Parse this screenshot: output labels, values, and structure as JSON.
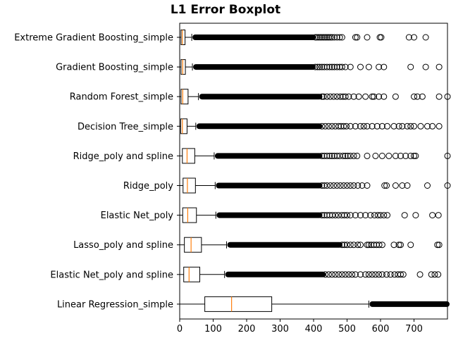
{
  "chart_data": {
    "type": "boxplot",
    "title": "L1 Error Boxplot",
    "xlabel": "",
    "ylabel": "",
    "xlim": [
      0,
      800
    ],
    "xticks": [
      0,
      100,
      200,
      300,
      400,
      500,
      600,
      700
    ],
    "xtick_labels": [
      "0",
      "100",
      "200",
      "300",
      "400",
      "500",
      "600",
      "700"
    ],
    "grid": false,
    "colors": {
      "box": "#000000",
      "median": "#ff7f0e",
      "flier": "#000000",
      "background": "#ffffff"
    },
    "categories": [
      "Extreme Gradient Boosting_simple",
      "Gradient Boosting_simple",
      "Random Forest_simple",
      "Decision Tree_simple",
      "Ridge_poly and spline",
      "Ridge_poly",
      "Elastic Net_poly",
      "Lasso_poly and spline",
      "Elastic Net_poly and spline",
      "Linear Regression_simple"
    ],
    "boxes": [
      {
        "whisker_low": 0,
        "q1": 4,
        "median": 8,
        "q3": 16,
        "whisker_high": 36,
        "dense_fliers_to": 400,
        "fliers": [
          405,
          410,
          415,
          420,
          425,
          430,
          435,
          440,
          445,
          450,
          455,
          462,
          470,
          478,
          485,
          525,
          530,
          560,
          598,
          602,
          685,
          700,
          735
        ]
      },
      {
        "whisker_low": 0,
        "q1": 4,
        "median": 9,
        "q3": 17,
        "whisker_high": 38,
        "dense_fliers_to": 400,
        "fliers": [
          405,
          412,
          418,
          425,
          432,
          440,
          448,
          455,
          462,
          470,
          478,
          485,
          495,
          510,
          540,
          565,
          595,
          610,
          690,
          735,
          775
        ]
      },
      {
        "whisker_low": 0,
        "q1": 4,
        "median": 9,
        "q3": 25,
        "whisker_high": 56,
        "dense_fliers_to": 420,
        "fliers": [
          425,
          430,
          440,
          450,
          460,
          470,
          480,
          488,
          495,
          505,
          520,
          535,
          555,
          575,
          580,
          595,
          610,
          645,
          700,
          710,
          725,
          775,
          800
        ]
      },
      {
        "whisker_low": 0,
        "q1": 3,
        "median": 8,
        "q3": 22,
        "whisker_high": 48,
        "dense_fliers_to": 420,
        "fliers": [
          425,
          435,
          445,
          455,
          465,
          475,
          482,
          490,
          498,
          510,
          525,
          540,
          550,
          560,
          575,
          590,
          605,
          620,
          640,
          655,
          665,
          680,
          690,
          700,
          720,
          740,
          755,
          775
        ]
      },
      {
        "whisker_low": 0,
        "q1": 8,
        "median": 22,
        "q3": 45,
        "whisker_high": 103,
        "dense_fliers_to": 420,
        "fliers": [
          425,
          432,
          440,
          448,
          455,
          462,
          470,
          478,
          488,
          495,
          502,
          510,
          520,
          530,
          560,
          585,
          605,
          625,
          645,
          660,
          675,
          690,
          700,
          705,
          800
        ]
      },
      {
        "whisker_low": 0,
        "q1": 10,
        "median": 23,
        "q3": 47,
        "whisker_high": 106,
        "dense_fliers_to": 420,
        "fliers": [
          425,
          432,
          440,
          450,
          460,
          470,
          480,
          490,
          500,
          510,
          520,
          532,
          545,
          560,
          612,
          618,
          645,
          665,
          680,
          740,
          800
        ]
      },
      {
        "whisker_low": 0,
        "q1": 9,
        "median": 24,
        "q3": 50,
        "whisker_high": 108,
        "dense_fliers_to": 420,
        "fliers": [
          425,
          432,
          440,
          448,
          456,
          465,
          474,
          484,
          492,
          500,
          510,
          525,
          540,
          555,
          570,
          582,
          592,
          600,
          610,
          620,
          672,
          705,
          755,
          773
        ]
      },
      {
        "whisker_low": 0,
        "q1": 14,
        "median": 34,
        "q3": 65,
        "whisker_high": 140,
        "dense_fliers_to": 480,
        "fliers": [
          485,
          492,
          500,
          510,
          520,
          532,
          540,
          560,
          565,
          572,
          580,
          588,
          596,
          605,
          640,
          655,
          660,
          690,
          770,
          775
        ]
      },
      {
        "whisker_low": 0,
        "q1": 12,
        "median": 28,
        "q3": 60,
        "whisker_high": 134,
        "dense_fliers_to": 430,
        "fliers": [
          435,
          445,
          455,
          465,
          475,
          485,
          495,
          505,
          515,
          525,
          540,
          555,
          565,
          575,
          585,
          595,
          605,
          618,
          630,
          642,
          652,
          660,
          668,
          718,
          752,
          762,
          772
        ]
      },
      {
        "whisker_low": 0,
        "q1": 75,
        "median": 155,
        "q3": 275,
        "whisker_high": 565,
        "dense_fliers_to": 800,
        "fliers": []
      }
    ]
  }
}
